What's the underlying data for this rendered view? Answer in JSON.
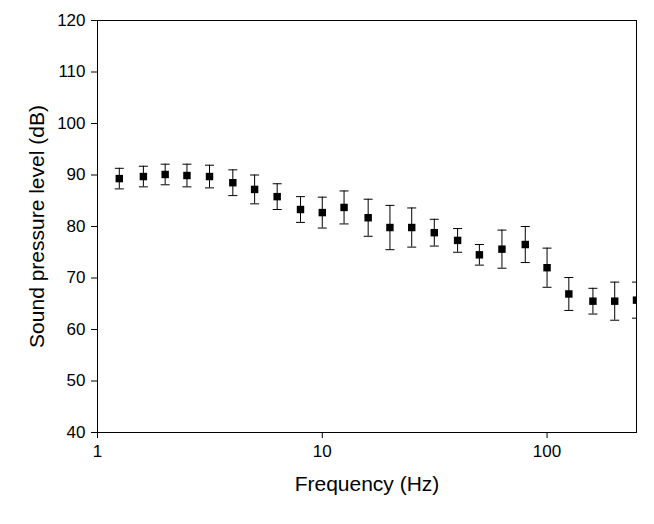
{
  "chart_data": {
    "type": "scatter",
    "xlabel": "Frequency (Hz)",
    "ylabel": "Sound pressure level (dB)",
    "x": [
      1.25,
      1.6,
      2,
      2.5,
      3.15,
      4,
      5,
      6.3,
      8,
      10,
      12.5,
      16,
      20,
      25,
      31.5,
      40,
      50,
      63,
      80,
      100,
      125,
      160,
      200,
      250
    ],
    "values": [
      89.3,
      89.7,
      90.1,
      89.9,
      89.7,
      88.5,
      87.2,
      85.8,
      83.3,
      82.7,
      83.7,
      81.7,
      79.8,
      79.8,
      78.8,
      77.3,
      74.5,
      75.6,
      76.5,
      72.0,
      66.9,
      65.5,
      65.5,
      65.7
    ],
    "errors": [
      2.0,
      2.0,
      2.0,
      2.2,
      2.2,
      2.5,
      2.8,
      2.5,
      2.5,
      3.0,
      3.2,
      3.6,
      4.3,
      3.8,
      2.6,
      2.3,
      2.0,
      3.7,
      3.5,
      3.8,
      3.2,
      2.5,
      3.7,
      3.5
    ],
    "xlim": [
      1,
      250
    ],
    "ylim": [
      40,
      120
    ],
    "xticks": [
      1,
      10,
      100
    ],
    "yticks": [
      40,
      50,
      60,
      70,
      80,
      90,
      100,
      110,
      120
    ],
    "log": "x",
    "marker": "square",
    "color": "#000000"
  }
}
